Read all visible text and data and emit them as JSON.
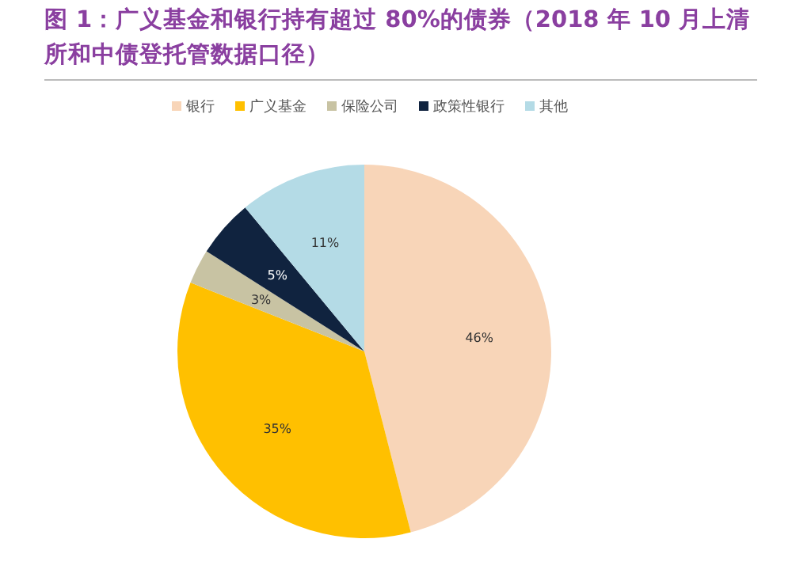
{
  "chart_data": {
    "type": "pie",
    "title": "图 1：广义基金和银行持有超过 80%的债券（2018 年 10 月上清所和中债登托管数据口径）",
    "categories": [
      "银行",
      "广义基金",
      "保险公司",
      "政策性银行",
      "其他"
    ],
    "values": [
      46,
      35,
      3,
      5,
      11
    ],
    "colors": [
      "#f8d5b8",
      "#ffc000",
      "#c8c3a3",
      "#10233f",
      "#b4dbe6"
    ],
    "value_labels": [
      "46%",
      "35%",
      "3%",
      "5%",
      "11%"
    ],
    "legend": "top"
  }
}
